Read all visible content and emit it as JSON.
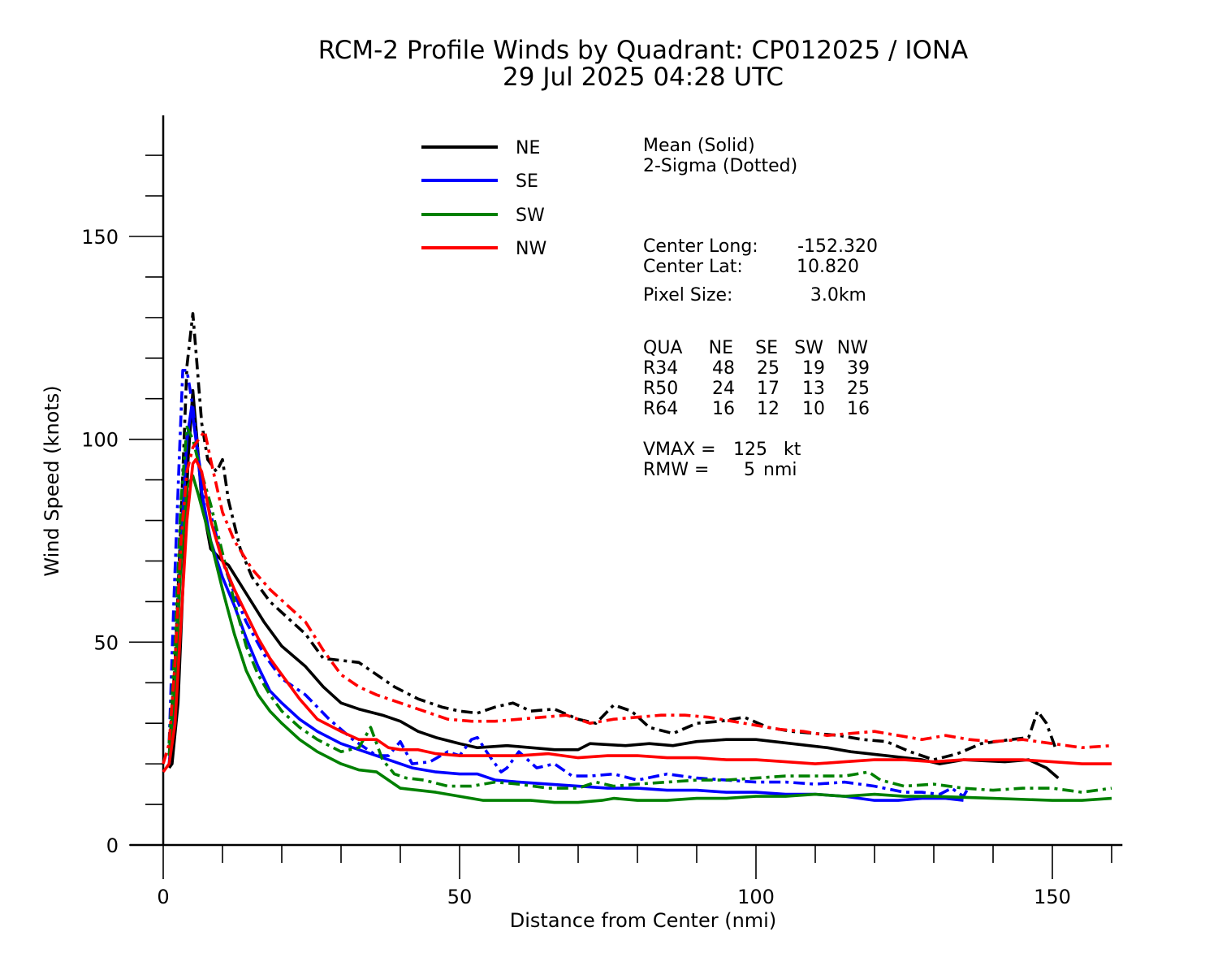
{
  "chart_data": {
    "type": "line",
    "title": "RCM-2 Profile Winds by Quadrant: CP012025 / IONA",
    "subtitle": "29 Jul 2025 04:28 UTC",
    "xlabel": "Distance from Center (nmi)",
    "ylabel": "Wind Speed (knots)",
    "xlim": [
      0,
      161
    ],
    "ylim": [
      0,
      180
    ],
    "x_ticks": [
      0,
      50,
      100,
      150
    ],
    "x_tick_labels": [
      "0",
      "50",
      "100",
      "150"
    ],
    "x_minor_step": 10,
    "y_ticks": [
      0,
      50,
      100,
      150
    ],
    "y_tick_labels": [
      "0",
      "50",
      "100",
      "150"
    ],
    "y_minor_step": 10,
    "grid": false,
    "legend_position": "top-center",
    "line_style_note": {
      "mean": "Mean (Solid)",
      "sigma": "2-Sigma (Dotted)"
    },
    "series": [
      {
        "name": "NE",
        "color": "#000000",
        "style": "solid",
        "x": [
          1,
          1.5,
          2.5,
          3.5,
          4.2,
          5,
          5.7,
          6.5,
          8,
          10,
          11,
          14,
          17,
          20,
          24,
          27,
          30,
          33,
          37,
          40,
          43,
          46,
          50,
          53,
          58,
          62,
          66,
          70,
          72,
          78,
          82,
          86,
          90,
          95,
          100,
          106,
          112,
          116,
          122,
          128,
          131,
          135,
          142,
          146,
          149,
          151
        ],
        "y": [
          19,
          20,
          35,
          70,
          95,
          112,
          100,
          85,
          73,
          70,
          69,
          62,
          55,
          49,
          44,
          39,
          35,
          33.5,
          32,
          30.5,
          28,
          26.5,
          25,
          24,
          24.5,
          24,
          23.5,
          23.5,
          25,
          24.5,
          25,
          24.5,
          25.5,
          26,
          26,
          25,
          24,
          23,
          22,
          21,
          20,
          21,
          20.5,
          21,
          19,
          16.5
        ]
      },
      {
        "name": "NE",
        "color": "#000000",
        "style": "dashdot",
        "x": [
          1,
          2,
          3,
          4,
          5,
          5.5,
          6.5,
          7.5,
          9,
          10,
          11,
          13,
          15,
          18,
          21,
          24,
          27,
          30,
          33,
          36,
          39,
          43,
          47,
          50,
          53,
          56,
          59,
          62,
          66,
          70,
          73,
          76,
          79,
          82,
          86,
          90,
          94,
          98,
          102,
          106,
          110,
          114,
          118,
          122,
          126,
          130,
          134,
          138,
          143,
          146,
          147.5,
          149,
          150.5
        ],
        "y": [
          22,
          45,
          80,
          118,
          131,
          122,
          104,
          95,
          92,
          95,
          85,
          73,
          66,
          60,
          56,
          52,
          46,
          45.5,
          45,
          42,
          39,
          36,
          34,
          33,
          32.5,
          34,
          35,
          33,
          33.5,
          31,
          30,
          34.5,
          33,
          29,
          27.5,
          30,
          30.5,
          31.5,
          29,
          28,
          27.5,
          27,
          26,
          25.5,
          23,
          21,
          22.5,
          25,
          26,
          26.5,
          33,
          30,
          24
        ]
      },
      {
        "name": "SE",
        "color": "#0000ff",
        "style": "solid",
        "x": [
          1,
          2,
          3,
          4,
          4.8,
          5.5,
          6.5,
          8,
          10,
          12,
          14,
          16,
          18,
          20,
          23,
          26,
          30,
          34,
          38,
          42,
          46,
          50,
          53,
          56,
          60,
          65,
          70,
          75,
          80,
          85,
          90,
          95,
          100,
          105,
          110,
          115,
          120,
          124,
          128,
          132,
          135
        ],
        "y": [
          20,
          38,
          75,
          100,
          108,
          100,
          87,
          75,
          66,
          59,
          51,
          44,
          38,
          35,
          31,
          28,
          25,
          23,
          21,
          19,
          18,
          17.5,
          17.5,
          16,
          15.5,
          15,
          14.5,
          14,
          14,
          13.5,
          13.5,
          13,
          13,
          12.5,
          12.5,
          12,
          11,
          11,
          11.5,
          11.5,
          11
        ]
      },
      {
        "name": "SE",
        "color": "#0000ff",
        "style": "dashdot",
        "x": [
          1,
          1.8,
          2.7,
          3.3,
          4,
          5,
          6,
          7,
          8.5,
          10,
          12,
          14,
          17,
          20,
          24,
          28,
          32,
          36,
          38,
          40,
          42,
          45,
          48,
          50,
          52,
          53,
          55,
          57,
          58,
          60,
          63,
          66,
          69,
          72,
          76,
          80,
          85,
          90,
          95,
          100,
          105,
          110,
          115,
          120,
          125,
          128,
          131,
          133,
          135,
          136
        ],
        "y": [
          25,
          60,
          95,
          117,
          117,
          108,
          95,
          86,
          79,
          70,
          62,
          55,
          47,
          41,
          37,
          31,
          26,
          22,
          22,
          25.5,
          20,
          20.5,
          23,
          22,
          26,
          26.5,
          22,
          18,
          19,
          23,
          19,
          20,
          17,
          17,
          17.5,
          16,
          17.5,
          16.5,
          16,
          15.5,
          15.5,
          15,
          15.5,
          14.5,
          13,
          13,
          12.5,
          14,
          12,
          14.5
        ]
      },
      {
        "name": "SW",
        "color": "#008000",
        "style": "solid",
        "x": [
          1,
          2,
          3,
          4,
          5,
          6,
          8,
          10,
          12,
          14,
          16,
          18,
          20,
          23,
          26,
          30,
          33,
          36,
          38,
          40,
          43,
          46,
          50,
          54,
          58,
          62,
          66,
          70,
          74,
          76,
          80,
          85,
          90,
          95,
          100,
          105,
          110,
          115,
          120,
          125,
          130,
          140,
          150,
          155,
          160
        ],
        "y": [
          22,
          40,
          70,
          88,
          91,
          86,
          75,
          63,
          52,
          43,
          37,
          33,
          30,
          26,
          23,
          20,
          18.5,
          18,
          16,
          14,
          13.5,
          13,
          12,
          11,
          11,
          11,
          10.5,
          10.5,
          11,
          11.5,
          11,
          11,
          11.5,
          11.5,
          12,
          12,
          12.5,
          12,
          12.5,
          12,
          12,
          11.5,
          11,
          11,
          11.5
        ]
      },
      {
        "name": "SW",
        "color": "#008000",
        "style": "dashdot",
        "x": [
          1,
          2,
          3,
          4,
          5,
          6,
          8,
          10,
          12,
          14,
          16,
          18,
          20,
          23,
          26,
          30,
          33,
          35,
          37,
          39,
          41,
          44,
          48,
          52,
          56,
          60,
          65,
          70,
          73,
          76,
          80,
          85,
          90,
          95,
          100,
          105,
          110,
          115,
          119,
          121,
          125,
          130,
          135,
          140,
          145,
          150,
          155,
          160
        ],
        "y": [
          25,
          50,
          85,
          103,
          100,
          94,
          84,
          72,
          60,
          49,
          42,
          37,
          33,
          29,
          26,
          23,
          24,
          29,
          21,
          17.5,
          16.5,
          16,
          14.5,
          14.5,
          15.5,
          15,
          14,
          14,
          15.5,
          14.5,
          15,
          15.5,
          16,
          16,
          16.5,
          17,
          17,
          17,
          18,
          16,
          14.5,
          15,
          14,
          13.5,
          14,
          14,
          13,
          14
        ]
      },
      {
        "name": "NW",
        "color": "#ff0000",
        "style": "solid",
        "x": [
          0,
          1,
          2,
          3,
          4,
          5,
          5.5,
          6.5,
          8,
          10,
          12,
          14,
          16,
          18,
          20,
          23,
          26,
          30,
          33,
          36,
          38,
          40,
          43,
          46,
          50,
          55,
          60,
          65,
          70,
          75,
          80,
          85,
          90,
          95,
          100,
          105,
          110,
          115,
          120,
          125,
          130,
          135,
          140,
          145,
          150,
          155,
          160
        ],
        "y": [
          18,
          20,
          30,
          55,
          80,
          94,
          95,
          92,
          80,
          70,
          63,
          57,
          51,
          46,
          42,
          36,
          31,
          28,
          26,
          26,
          24,
          23.5,
          23.5,
          22.5,
          22,
          22,
          22,
          22.5,
          21.5,
          22,
          22,
          21.5,
          21.5,
          21,
          21,
          20.5,
          20,
          20.5,
          21,
          21,
          20.5,
          21,
          21,
          21,
          20.5,
          20,
          20
        ]
      },
      {
        "name": "NW",
        "color": "#ff0000",
        "style": "dashdot",
        "x": [
          0,
          1,
          2,
          3,
          4,
          5,
          6,
          7,
          8,
          10,
          12,
          15,
          18,
          21,
          24,
          27,
          30,
          33,
          36,
          40,
          44,
          48,
          52,
          56,
          60,
          64,
          68,
          72,
          76,
          80,
          84,
          88,
          92,
          96,
          100,
          104,
          108,
          112,
          116,
          120,
          124,
          128,
          132,
          136,
          140,
          145,
          150,
          155,
          160
        ],
        "y": [
          20,
          25,
          45,
          75,
          92,
          98,
          100,
          102,
          95,
          82,
          75,
          68,
          63,
          59,
          55,
          48,
          42,
          39,
          37,
          35,
          33,
          31,
          30.5,
          30.5,
          31,
          31.5,
          32,
          30,
          31,
          31.5,
          32,
          32,
          31.5,
          30.5,
          29.5,
          28.5,
          28,
          27,
          27.5,
          28,
          27,
          26,
          27,
          26,
          25.5,
          26,
          25,
          24,
          24.5
        ]
      }
    ]
  },
  "legend": {
    "items": [
      {
        "label": "NE",
        "color": "#000000"
      },
      {
        "label": "SE",
        "color": "#0000ff"
      },
      {
        "label": "SW",
        "color": "#008000"
      },
      {
        "label": "NW",
        "color": "#ff0000"
      }
    ]
  },
  "info": {
    "mean_label": "Mean (Solid)",
    "sigma_label": "2-Sigma (Dotted)",
    "center_long_label": "Center Long:",
    "center_long_value": "-152.320",
    "center_lat_label": "Center Lat:",
    "center_lat_value": "10.820",
    "pixel_size_label": "Pixel Size:",
    "pixel_size_value": "3.0km",
    "radii_table": {
      "header": [
        "QUA",
        "NE",
        "SE",
        "SW",
        "NW"
      ],
      "rows": [
        [
          "R34",
          "48",
          "25",
          "19",
          "39"
        ],
        [
          "R50",
          "24",
          "17",
          "13",
          "25"
        ],
        [
          "R64",
          "16",
          "12",
          "10",
          "16"
        ]
      ]
    },
    "vmax_label": "VMAX =",
    "vmax_value": "125",
    "vmax_unit": "kt",
    "rmw_label": "RMW =",
    "rmw_value": "5",
    "rmw_unit": "nmi"
  }
}
